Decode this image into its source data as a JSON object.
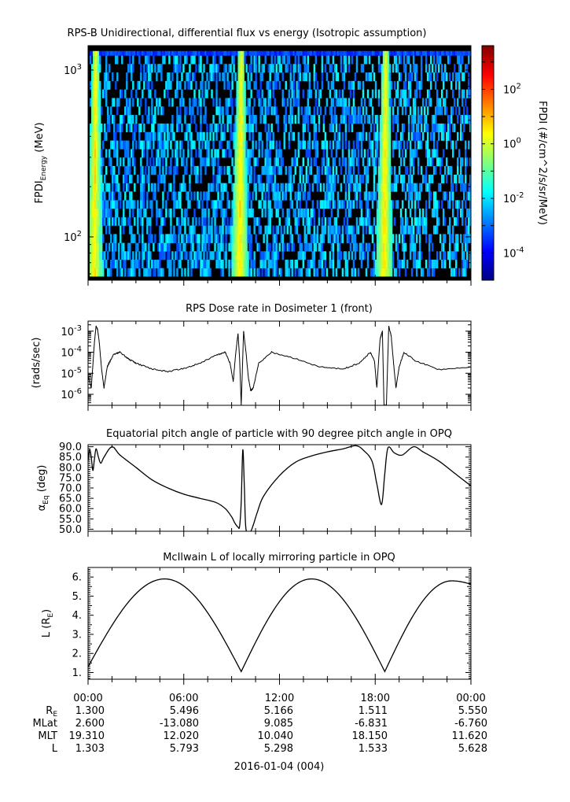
{
  "chart_data": [
    {
      "type": "heatmap",
      "title": "RPS-B  Unidirectional, differential flux vs energy (Isotropic assumption)",
      "ylabel_main": "FPDI",
      "ylabel_sub": "Energy",
      "ylabel_unit": "(MeV)",
      "yscale": "log",
      "ylim": [
        55,
        1400
      ],
      "yticks": [
        {
          "value": 100,
          "base": "10",
          "exp": "2"
        },
        {
          "value": 1000,
          "base": "10",
          "exp": "3"
        }
      ],
      "energy_bins": [
        58,
        65,
        73,
        82,
        92,
        104,
        117,
        131,
        148,
        166,
        187,
        210,
        236,
        266,
        299,
        336,
        378,
        425,
        478,
        538,
        605,
        680,
        765,
        860,
        967,
        1088,
        1223,
        1300
      ],
      "xlim_hours": [
        0,
        24
      ],
      "enhancement_centers_hours": [
        0.45,
        9.55,
        18.6
      ],
      "colorbar": {
        "label": "FPDI (#/cm^2/s/sr/MeV)",
        "zscale": "log",
        "zlim_exp": [
          -5,
          3.6
        ],
        "ticks": [
          {
            "base": "10",
            "exp": "-4",
            "e": -4
          },
          {
            "base": "10",
            "exp": "-2",
            "e": -2
          },
          {
            "base": "10",
            "exp": "0",
            "e": 0
          },
          {
            "base": "10",
            "exp": "2",
            "e": 2
          }
        ],
        "colors": [
          "#00007f",
          "#0000ff",
          "#007fff",
          "#00ffff",
          "#7fff7f",
          "#ffff00",
          "#ff7f00",
          "#ff0000",
          "#7f0000"
        ]
      }
    },
    {
      "type": "line",
      "title": "RPS  Dose rate in Dosimeter 1 (front)",
      "ylabel": "(rads/sec)",
      "yscale": "log",
      "ylim": [
        3e-07,
        0.003
      ],
      "yticks": [
        {
          "value": 1e-06,
          "base": "10",
          "exp": "-6"
        },
        {
          "value": 1e-05,
          "base": "10",
          "exp": "-5"
        },
        {
          "value": 0.0001,
          "base": "10",
          "exp": "-4"
        },
        {
          "value": 0.001,
          "base": "10",
          "exp": "-3"
        }
      ],
      "x_hours": [
        0.0,
        0.2,
        0.4,
        0.5,
        0.6,
        0.7,
        0.85,
        1.0,
        1.2,
        1.4,
        1.6,
        2.0,
        2.5,
        3.0,
        4.0,
        5.0,
        6.0,
        7.0,
        8.0,
        8.6,
        8.9,
        9.1,
        9.25,
        9.4,
        9.5,
        9.6,
        9.75,
        9.9,
        10.05,
        10.2,
        10.35,
        10.7,
        11.5,
        13.0,
        14.5,
        16.0,
        17.0,
        17.7,
        17.95,
        18.1,
        18.3,
        18.45,
        18.55,
        18.7,
        18.85,
        19.0,
        19.15,
        19.3,
        19.5,
        19.8,
        20.5,
        22.0,
        24.0
      ],
      "values": [
        8e-06,
        2e-06,
        0.0003,
        0.0017,
        0.0012,
        0.0003,
        1.5e-05,
        2e-06,
        2e-05,
        4e-05,
        8e-05,
        0.0001,
        5e-05,
        3e-05,
        1.6e-05,
        1.2e-05,
        1.7e-05,
        3e-05,
        7e-05,
        0.0001,
        3e-05,
        4e-06,
        8e-05,
        0.0008,
        5e-05,
        3e-07,
        0.001,
        0.0001,
        6e-06,
        1.5e-06,
        2e-06,
        3e-05,
        0.0001,
        5e-05,
        2e-05,
        1.6e-05,
        3e-05,
        0.0001,
        4e-05,
        2e-06,
        0.0004,
        0.001,
        3e-07,
        3e-07,
        0.0018,
        0.0006,
        3e-05,
        2e-06,
        2e-05,
        0.0001,
        4e-05,
        1.5e-05,
        2e-05
      ]
    },
    {
      "type": "line",
      "title": "Equatorial pitch angle of particle with 90 degree pitch angle in OPQ",
      "ylabel_main": "α",
      "ylabel_sub": "Eq",
      "ylabel_unit": "(deg)",
      "ylim": [
        49,
        91
      ],
      "yticks": [
        50,
        55,
        60,
        65,
        70,
        75,
        80,
        85,
        90
      ],
      "x_hours": [
        0.0,
        0.1,
        0.2,
        0.3,
        0.4,
        0.5,
        0.65,
        0.8,
        1.0,
        1.5,
        2.0,
        3.0,
        4.0,
        5.0,
        6.0,
        7.0,
        8.0,
        8.6,
        9.0,
        9.2,
        9.4,
        9.5,
        9.6,
        9.7,
        9.8,
        9.9,
        10.2,
        10.6,
        11.0,
        12.0,
        13.0,
        14.0,
        15.0,
        16.0,
        16.8,
        17.3,
        17.8,
        18.1,
        18.4,
        18.6,
        18.8,
        19.2,
        19.7,
        20.4,
        21.0,
        22.0,
        23.0,
        24.0
      ],
      "values": [
        83,
        88.5,
        85,
        78.5,
        84,
        89,
        85,
        82,
        85,
        90,
        86,
        80,
        74,
        70,
        67,
        65,
        63,
        60,
        56,
        53,
        51,
        51.5,
        63,
        88.5,
        70,
        50,
        49,
        58,
        66,
        76,
        82.5,
        85.5,
        87.5,
        89,
        90.5,
        88,
        83,
        72,
        62,
        77,
        89.5,
        87,
        86,
        90,
        87.5,
        83,
        77,
        71
      ]
    },
    {
      "type": "line",
      "title": "McIlwain L of locally mirroring particle in OPQ",
      "ylabel_main": "L (R",
      "ylabel_sub": "E",
      "ylabel_unit": ")",
      "ylim": [
        0.65,
        6.5
      ],
      "yticks": [
        1,
        2,
        3,
        4,
        5,
        6
      ],
      "segments": [
        {
          "x_start": 0.0,
          "x_end": 9.6,
          "L_start": 1.303,
          "L_peak": 5.9,
          "x_peak": 4.8,
          "L_end": 1.05
        },
        {
          "x_start": 9.6,
          "x_end": 18.6,
          "L_start": 1.05,
          "L_peak": 5.9,
          "x_peak": 14.0,
          "L_end": 1.05
        },
        {
          "x_start": 18.6,
          "x_end": 24.0,
          "L_start": 1.05,
          "L_peak": 5.8,
          "x_peak": 22.8,
          "L_end": 5.628
        }
      ]
    }
  ],
  "xaxis": {
    "tick_labels": [
      "00:00",
      "06:00",
      "12:00",
      "18:00",
      "00:00"
    ],
    "date_label": "2016-01-04 (004)"
  },
  "ephemeris": {
    "rows": [
      {
        "name": "R",
        "sub": "E",
        "values": [
          "1.300",
          "5.496",
          "5.166",
          "1.511",
          "5.550"
        ]
      },
      {
        "name": "MLat",
        "sub": "",
        "values": [
          "2.600",
          "-13.080",
          "9.085",
          "-6.831",
          "-6.760"
        ]
      },
      {
        "name": "MLT",
        "sub": "",
        "values": [
          "19.310",
          "12.020",
          "10.040",
          "18.150",
          "11.620"
        ]
      },
      {
        "name": "L",
        "sub": "",
        "values": [
          "1.303",
          "5.793",
          "5.298",
          "1.533",
          "5.628"
        ]
      }
    ]
  }
}
